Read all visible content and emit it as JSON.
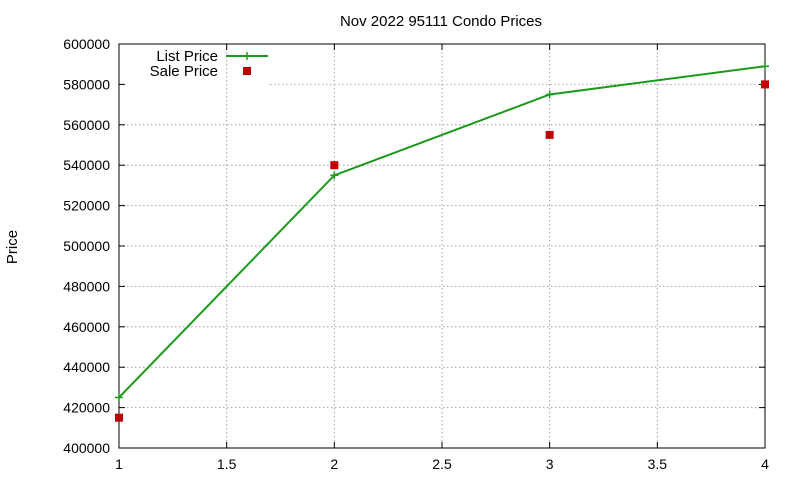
{
  "chart_data": {
    "type": "line",
    "title": "Nov 2022 95111 Condo Prices",
    "xlabel": "",
    "ylabel": "Price",
    "xlim": [
      1,
      4
    ],
    "ylim": [
      400000,
      600000
    ],
    "xticks": [
      1,
      1.5,
      2,
      2.5,
      3,
      3.5,
      4
    ],
    "xtick_labels": [
      "1",
      "1.5",
      "2",
      "2.5",
      "3",
      "3.5",
      "4"
    ],
    "yticks": [
      400000,
      420000,
      440000,
      460000,
      480000,
      500000,
      520000,
      540000,
      560000,
      580000,
      600000
    ],
    "ytick_labels": [
      "400000",
      "420000",
      "440000",
      "460000",
      "480000",
      "500000",
      "520000",
      "540000",
      "560000",
      "580000",
      "600000"
    ],
    "grid": true,
    "legend_position": "top-left",
    "series": [
      {
        "name": "List Price",
        "style": "linespoints",
        "marker": "plus",
        "color": "#1a9a1a",
        "x": [
          1,
          2,
          3,
          4
        ],
        "y": [
          425000,
          535000,
          575000,
          589000
        ]
      },
      {
        "name": "Sale Price",
        "style": "points",
        "marker": "square",
        "color": "#c00000",
        "x": [
          1,
          2,
          3,
          4
        ],
        "y": [
          415000,
          540000,
          555000,
          580000
        ]
      }
    ]
  }
}
